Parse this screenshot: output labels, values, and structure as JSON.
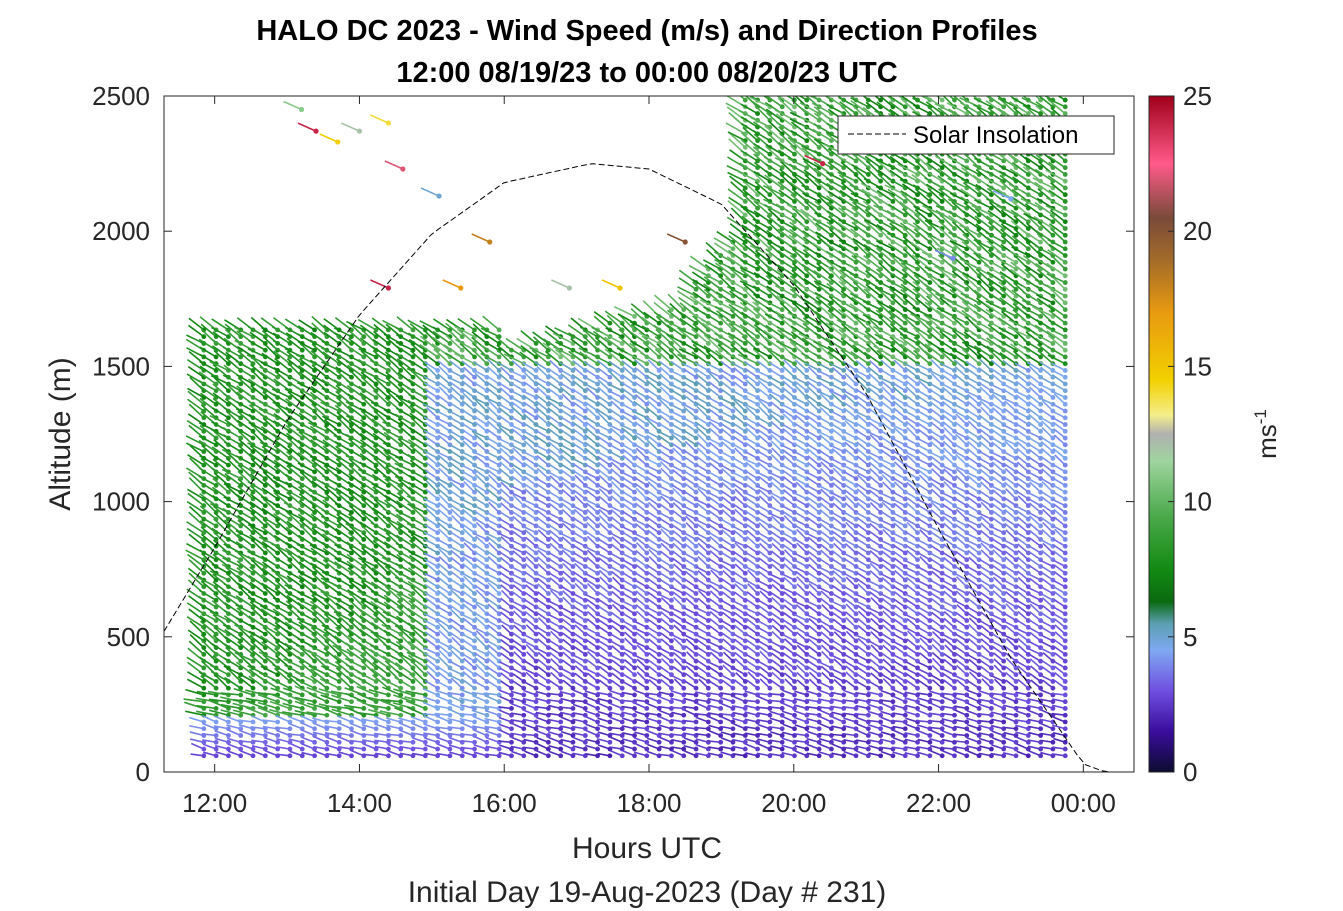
{
  "chart_data": {
    "type": "wind-barb-profile",
    "title": "HALO DC 2023 - Wind Speed (m/s) and Direction Profiles",
    "subtitle": "12:00 08/19/23 to 00:00 08/20/23  UTC",
    "xlabel": "Hours UTC",
    "footer": "Initial Day 19-Aug-2023 (Day # 231)",
    "ylabel": "Altitude (m)",
    "xlim": [
      11.3,
      24.7
    ],
    "ylim": [
      0,
      2500
    ],
    "x_ticks": [
      {
        "value": 12,
        "label": "12:00"
      },
      {
        "value": 14,
        "label": "14:00"
      },
      {
        "value": 16,
        "label": "16:00"
      },
      {
        "value": 18,
        "label": "18:00"
      },
      {
        "value": 20,
        "label": "20:00"
      },
      {
        "value": 22,
        "label": "22:00"
      },
      {
        "value": 24,
        "label": "00:00"
      }
    ],
    "y_ticks": [
      0,
      500,
      1000,
      1500,
      2000,
      2500
    ],
    "legend": {
      "entries": [
        "Solar Insolation"
      ],
      "placement": "top-right"
    },
    "colorbar": {
      "label_base": "ms",
      "label_exp": "-1",
      "range": [
        0,
        25
      ],
      "ticks": [
        0,
        5,
        10,
        15,
        20,
        25
      ],
      "stops": [
        {
          "v": 0,
          "c": "#0c0c30"
        },
        {
          "v": 1.5,
          "c": "#3a0d9c"
        },
        {
          "v": 3,
          "c": "#6f4fe0"
        },
        {
          "v": 4.5,
          "c": "#7fa8f2"
        },
        {
          "v": 5.5,
          "c": "#5b9fb0"
        },
        {
          "v": 6.3,
          "c": "#0a6a10"
        },
        {
          "v": 7.5,
          "c": "#128a12"
        },
        {
          "v": 9.5,
          "c": "#4caa4c"
        },
        {
          "v": 11.5,
          "c": "#9fd49f"
        },
        {
          "v": 12.5,
          "c": "#b0b0b0"
        },
        {
          "v": 13.2,
          "c": "#f4ee8a"
        },
        {
          "v": 14.5,
          "c": "#f2d000"
        },
        {
          "v": 17,
          "c": "#e89a10"
        },
        {
          "v": 19,
          "c": "#a06a2a"
        },
        {
          "v": 20.5,
          "c": "#7a4a3a"
        },
        {
          "v": 22.5,
          "c": "#ff5a8a"
        },
        {
          "v": 25,
          "c": "#a0001a"
        }
      ]
    },
    "profiles": {
      "time_start": 11.85,
      "time_end": 23.8,
      "time_step": 0.17,
      "altitude_start": 60,
      "altitude_step": 25,
      "wind_direction": "mostly northwesterly to westerly, backing to southwesterly with height late in the period"
    },
    "barb_samples": [
      {
        "time": 12.0,
        "altitude_range": [
          60,
          200
        ],
        "speed_range": [
          2,
          4
        ]
      },
      {
        "time": 12.0,
        "altitude_range": [
          250,
          1650
        ],
        "speed_range": [
          7,
          10
        ]
      },
      {
        "time": 15.0,
        "altitude_range": [
          60,
          900
        ],
        "speed_range": [
          3,
          5
        ]
      },
      {
        "time": 15.0,
        "altitude_range": [
          900,
          1600
        ],
        "speed_range": [
          7,
          9
        ]
      },
      {
        "time": 18.0,
        "altitude_range": [
          60,
          1450
        ],
        "speed_range": [
          1.5,
          4.5
        ]
      },
      {
        "time": 18.0,
        "altitude_range": [
          1500,
          1800
        ],
        "speed_range": [
          7,
          11
        ]
      },
      {
        "time": 21.0,
        "altitude_range": [
          60,
          1500
        ],
        "speed_range": [
          1.5,
          4
        ]
      },
      {
        "time": 21.0,
        "altitude_range": [
          1600,
          2500
        ],
        "speed_range": [
          7,
          11
        ]
      },
      {
        "time": 23.5,
        "altitude_range": [
          60,
          1600
        ],
        "speed_range": [
          2,
          5
        ]
      },
      {
        "time": 23.5,
        "altitude_range": [
          1650,
          2500
        ],
        "speed_range": [
          7,
          10
        ]
      }
    ],
    "solar_insolation": {
      "style": "dashed black",
      "points": [
        [
          11.3,
          520
        ],
        [
          12.0,
          830
        ],
        [
          13.0,
          1300
        ],
        [
          14.0,
          1690
        ],
        [
          15.0,
          1990
        ],
        [
          16.0,
          2180
        ],
        [
          17.2,
          2250
        ],
        [
          18.0,
          2230
        ],
        [
          19.0,
          2100
        ],
        [
          20.0,
          1800
        ],
        [
          21.0,
          1400
        ],
        [
          22.0,
          900
        ],
        [
          23.0,
          420
        ],
        [
          24.0,
          30
        ],
        [
          24.3,
          0
        ],
        [
          24.7,
          0
        ]
      ]
    }
  }
}
